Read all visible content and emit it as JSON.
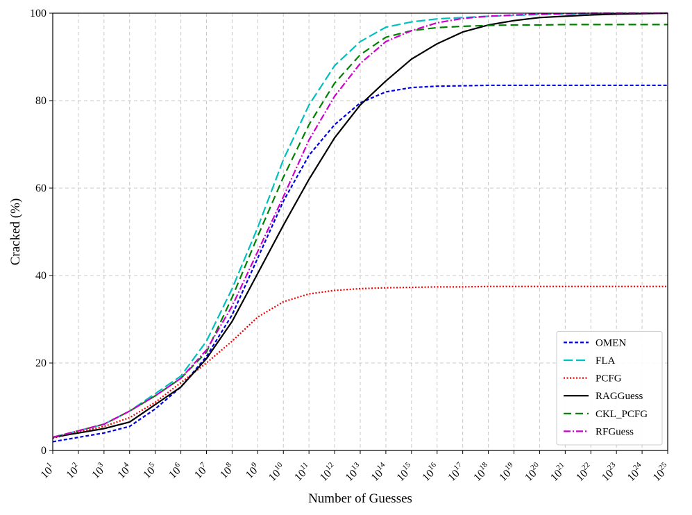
{
  "chart_data": {
    "type": "line",
    "xlabel": "Number of Guesses",
    "ylabel": "Cracked (%)",
    "x_scale": "log10",
    "x_exponents": [
      1,
      2,
      3,
      4,
      5,
      6,
      7,
      8,
      9,
      10,
      11,
      12,
      13,
      14,
      15,
      16,
      17,
      18,
      19,
      20,
      21,
      22,
      23,
      24,
      25
    ],
    "ylim": [
      0,
      100
    ],
    "yticks": [
      0,
      20,
      40,
      60,
      80,
      100
    ],
    "grid": true,
    "legend_position": "lower-right",
    "series": [
      {
        "name": "OMEN",
        "color": "#0000dd",
        "style": "short-dash",
        "values": [
          2.0,
          3.0,
          4.0,
          5.5,
          9.5,
          14.5,
          21.5,
          31.0,
          44.0,
          57.0,
          67.5,
          74.5,
          79.5,
          82.0,
          83.0,
          83.3,
          83.4,
          83.5,
          83.5,
          83.5,
          83.5,
          83.5,
          83.5,
          83.5,
          83.5
        ]
      },
      {
        "name": "FLA",
        "color": "#00bfbf",
        "style": "long-dash",
        "values": [
          3.0,
          4.5,
          6.0,
          9.0,
          13.0,
          17.0,
          25.0,
          37.0,
          51.0,
          66.5,
          79.0,
          88.0,
          93.5,
          96.8,
          98.0,
          98.7,
          99.0,
          99.3,
          99.5,
          99.7,
          99.8,
          99.9,
          100.0,
          100.0,
          100.0
        ]
      },
      {
        "name": "PCFG",
        "color": "#ee0000",
        "style": "dotted",
        "values": [
          2.8,
          4.2,
          5.5,
          7.5,
          11.0,
          15.5,
          20.0,
          25.0,
          30.5,
          34.0,
          35.8,
          36.6,
          37.0,
          37.2,
          37.3,
          37.4,
          37.4,
          37.5,
          37.5,
          37.5,
          37.5,
          37.5,
          37.5,
          37.5,
          37.5
        ]
      },
      {
        "name": "RAGGuess",
        "color": "#000000",
        "style": "solid",
        "values": [
          3.0,
          4.0,
          5.0,
          6.5,
          10.5,
          14.5,
          21.0,
          29.5,
          40.5,
          51.5,
          62.0,
          71.5,
          79.0,
          84.5,
          89.5,
          93.0,
          95.7,
          97.3,
          98.3,
          99.0,
          99.3,
          99.6,
          99.8,
          99.9,
          100.0
        ]
      },
      {
        "name": "CKL_PCFG",
        "color": "#008000",
        "style": "dashed",
        "values": [
          3.0,
          4.5,
          6.0,
          9.0,
          12.5,
          16.5,
          22.5,
          35.0,
          49.0,
          62.5,
          74.5,
          84.0,
          90.5,
          94.5,
          96.0,
          96.7,
          97.0,
          97.2,
          97.3,
          97.3,
          97.4,
          97.4,
          97.4,
          97.4,
          97.4
        ]
      },
      {
        "name": "RFGuess",
        "color": "#cc00cc",
        "style": "dash-dot",
        "values": [
          3.0,
          4.5,
          6.0,
          9.0,
          12.5,
          16.5,
          23.0,
          33.0,
          45.5,
          58.0,
          71.0,
          81.0,
          88.5,
          93.5,
          96.0,
          97.8,
          98.8,
          99.3,
          99.6,
          99.8,
          99.9,
          100.0,
          100.0,
          100.0,
          100.0
        ]
      }
    ]
  }
}
